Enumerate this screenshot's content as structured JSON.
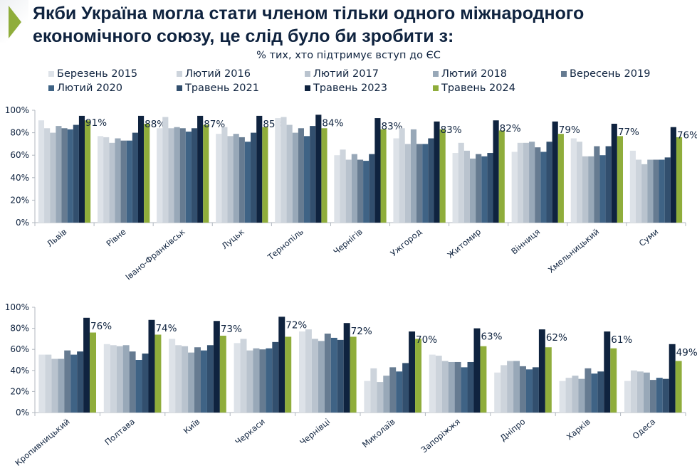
{
  "title": "Якби Україна могла стати членом тільки одного міжнародного економічного союзу, це слід було би зробити з:",
  "subtitle": "% тих, хто підтримує вступ до ЄС",
  "chart_data": {
    "type": "bar",
    "grouped": true,
    "ylim": [
      0,
      100
    ],
    "yticks": [
      "0%",
      "20%",
      "40%",
      "60%",
      "80%",
      "100%"
    ],
    "grid": false,
    "legend": "top",
    "series_meta": [
      {
        "name": "Березень 2015",
        "color": "#dde2e8"
      },
      {
        "name": "Лютий 2016",
        "color": "#cdd4dc"
      },
      {
        "name": "Лютий 2017",
        "color": "#b9c3ce"
      },
      {
        "name": "Лютий 2018",
        "color": "#98a8b8"
      },
      {
        "name": "Вересень 2019",
        "color": "#667b91"
      },
      {
        "name": "Лютий 2020",
        "color": "#3f6385"
      },
      {
        "name": "Травень 2021",
        "color": "#324f6e"
      },
      {
        "name": "Травень 2023",
        "color": "#0f233f"
      },
      {
        "name": "Травень 2024",
        "color": "#8fad3b"
      }
    ],
    "panels": [
      {
        "categories": [
          "Львів",
          "Рівне",
          "Івано-Франківськ",
          "Луцьк",
          "Тернопіль",
          "Чернігів",
          "Ужгород",
          "Житомир",
          "Вінниця",
          "Хмельницький",
          "Суми"
        ],
        "values": [
          [
            91,
            84,
            80,
            86,
            84,
            83,
            87,
            95,
            91
          ],
          [
            77,
            76,
            71,
            75,
            73,
            73,
            80,
            95,
            88
          ],
          [
            84,
            94,
            84,
            85,
            84,
            81,
            84,
            95,
            87
          ],
          [
            79,
            85,
            77,
            79,
            76,
            72,
            80,
            95,
            85
          ],
          [
            93,
            94,
            87,
            80,
            84,
            77,
            86,
            96,
            84
          ],
          [
            60,
            65,
            56,
            61,
            56,
            55,
            61,
            93,
            83
          ],
          [
            75,
            84,
            70,
            83,
            70,
            70,
            75,
            90,
            83
          ],
          [
            62,
            71,
            64,
            57,
            61,
            59,
            62,
            91,
            82
          ],
          [
            63,
            71,
            71,
            72,
            67,
            63,
            72,
            90,
            79
          ],
          [
            75,
            72,
            59,
            59,
            68,
            60,
            68,
            88,
            77
          ],
          [
            64,
            56,
            52,
            56,
            56,
            56,
            58,
            85,
            76
          ]
        ],
        "data_labels": [
          "91%",
          "88%",
          "87%",
          "85%",
          "84%",
          "83%",
          "83%",
          "82%",
          "79%",
          "77%",
          "76%"
        ]
      },
      {
        "categories": [
          "Кропивницький",
          "Полтава",
          "Київ",
          "Черкаси",
          "Чернівці",
          "Миколаїв",
          "Запоріжжя",
          "Дніпро",
          "Харків",
          "Одеса"
        ],
        "values": [
          [
            55,
            55,
            51,
            51,
            59,
            55,
            58,
            90,
            76
          ],
          [
            65,
            64,
            63,
            64,
            58,
            50,
            56,
            88,
            74
          ],
          [
            70,
            64,
            63,
            57,
            62,
            59,
            64,
            87,
            73
          ],
          [
            66,
            70,
            59,
            61,
            60,
            61,
            67,
            91,
            72
          ],
          [
            77,
            79,
            70,
            68,
            75,
            71,
            69,
            85,
            72
          ],
          [
            30,
            42,
            29,
            35,
            43,
            39,
            47,
            77,
            70
          ],
          [
            55,
            54,
            49,
            48,
            48,
            43,
            48,
            80,
            63
          ],
          [
            38,
            45,
            49,
            49,
            44,
            41,
            43,
            79,
            62
          ],
          [
            30,
            33,
            35,
            32,
            42,
            37,
            39,
            77,
            61
          ],
          [
            30,
            40,
            39,
            38,
            31,
            33,
            32,
            65,
            49
          ]
        ],
        "data_labels": [
          "76%",
          "74%",
          "73%",
          "72%",
          "72%",
          "70%",
          "63%",
          "62%",
          "61%",
          "49%"
        ]
      }
    ]
  }
}
